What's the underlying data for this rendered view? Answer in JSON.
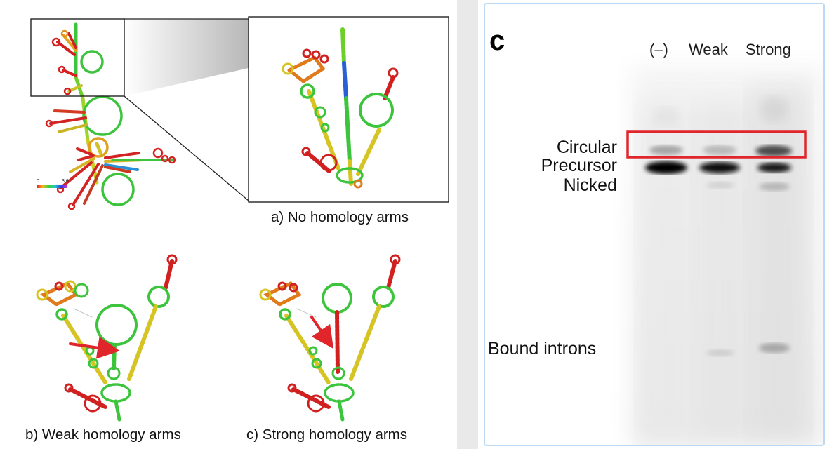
{
  "figure_left": {
    "scale_bar": {
      "min_label": "0",
      "max_label": "3.6"
    },
    "captions": {
      "a": "a) No homology arms",
      "b": "b) Weak homology arms",
      "c": "c) Strong homology arms"
    }
  },
  "figure_right": {
    "panel_label": "c",
    "lanes": [
      "(–)",
      "Weak",
      "Strong"
    ],
    "band_labels": [
      "Circular",
      "Precursor",
      "Nicked",
      "Bound introns"
    ],
    "highlight_color": "#e0252b"
  },
  "colors": {
    "arrow": "#e0252b",
    "background": "#ffffff",
    "divider": "#e9e9e9"
  }
}
